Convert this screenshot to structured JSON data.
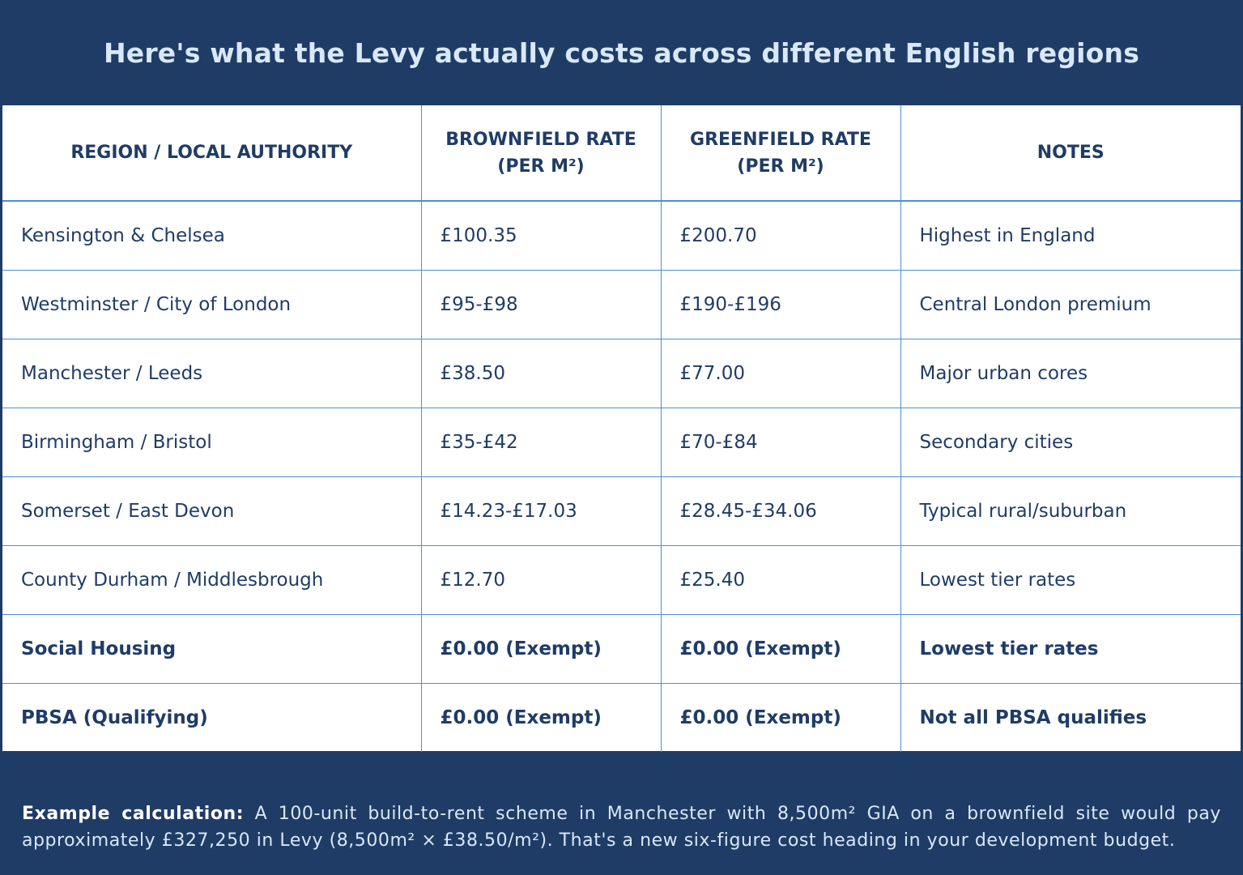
{
  "title": "Here's what the Levy actually costs across different English regions",
  "table": {
    "headers": [
      "REGION / LOCAL AUTHORITY",
      "BROWNFIELD RATE (PER M²)",
      "GREENFIELD RATE (PER M²)",
      "NOTES"
    ],
    "rows": [
      {
        "region": "Kensington & Chelsea",
        "brownfield": "£100.35",
        "greenfield": "£200.70",
        "notes": "Highest in England",
        "bold": false
      },
      {
        "region": "Westminster / City of London",
        "brownfield": "£95-£98",
        "greenfield": "£190-£196",
        "notes": "Central London premium",
        "bold": false
      },
      {
        "region": "Manchester / Leeds",
        "brownfield": "£38.50",
        "greenfield": "£77.00",
        "notes": "Major urban cores",
        "bold": false
      },
      {
        "region": "Birmingham / Bristol",
        "brownfield": "£35-£42",
        "greenfield": "£70-£84",
        "notes": "Secondary cities",
        "bold": false
      },
      {
        "region": "Somerset / East Devon",
        "brownfield": "£14.23-£17.03",
        "greenfield": "£28.45-£34.06",
        "notes": "Typical rural/suburban",
        "bold": false
      },
      {
        "region": "County Durham / Middlesbrough",
        "brownfield": "£12.70",
        "greenfield": "£25.40",
        "notes": "Lowest tier rates",
        "bold": false
      },
      {
        "region": "Social Housing",
        "brownfield": "£0.00 (Exempt)",
        "greenfield": "£0.00 (Exempt)",
        "notes": "Lowest tier rates",
        "bold": true
      },
      {
        "region": "PBSA (Qualifying)",
        "brownfield": "£0.00 (Exempt)",
        "greenfield": "£0.00 (Exempt)",
        "notes": "Not all PBSA qualifies",
        "bold": true
      }
    ]
  },
  "footer": {
    "label": "Example calculation:",
    "text": "A 100-unit build-to-rent scheme in Manchester with 8,500m² GIA on a brownfield site would pay approximately £327,250 in Levy (8,500m² × £38.50/m²). That's a new six-figure cost heading in your development budget."
  },
  "colors": {
    "background": "#1f3c66",
    "title_text": "#d9e8f8",
    "table_text": "#1f3c66",
    "grid": "#4a90d6",
    "table_bg": "#ffffff"
  }
}
